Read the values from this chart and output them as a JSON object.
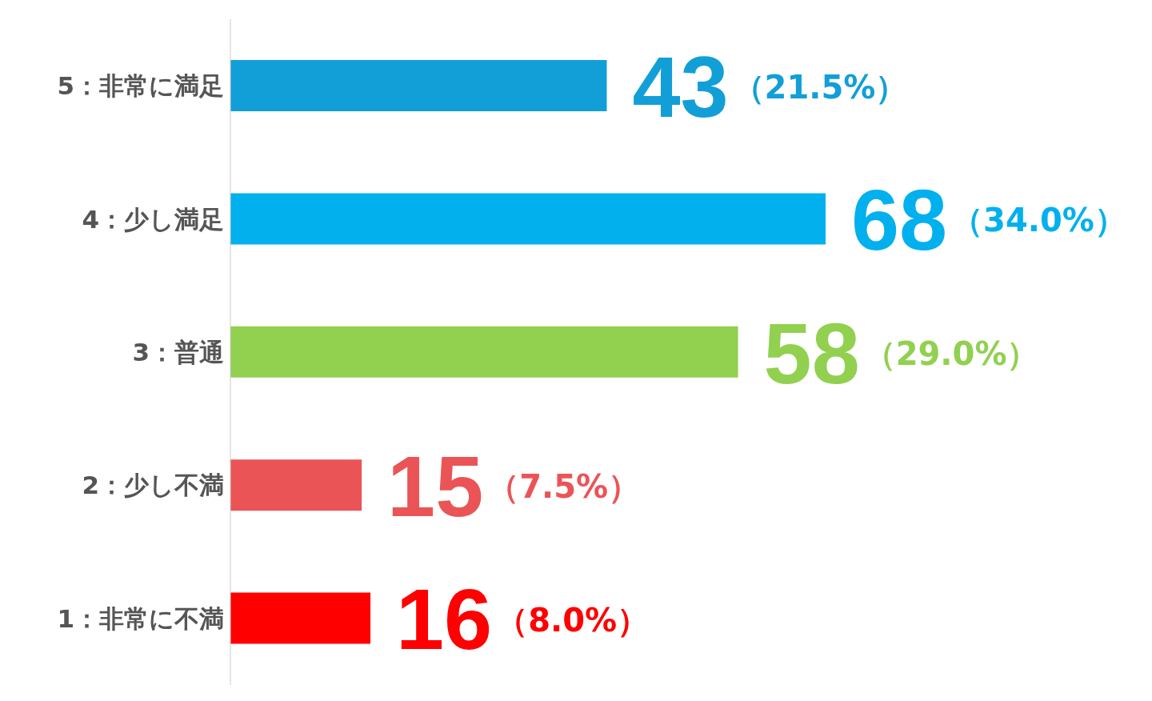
{
  "chart_data": {
    "type": "bar",
    "orientation": "horizontal",
    "categories": [
      "5：非常に満足",
      "4：少し満足",
      "3：普通",
      "2：少し不満",
      "1：非常に不満"
    ],
    "values": [
      43,
      68,
      58,
      15,
      16
    ],
    "colors": [
      "#129fd8",
      "#02b0ee",
      "#92d050",
      "#eb5457",
      "#ff0000"
    ],
    "data_labels": true,
    "annotations": [
      "（21.5%）",
      "（34.0%）",
      "（29.0%）",
      "（7.5%）",
      "（8.0%）"
    ],
    "grid": false,
    "legend": false
  }
}
